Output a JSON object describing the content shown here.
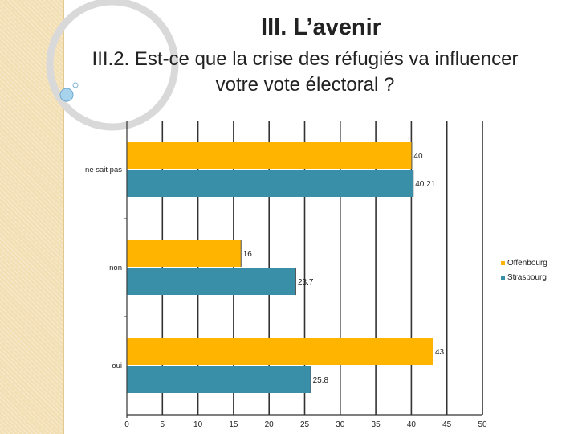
{
  "slide": {
    "title": "III. L’avenir",
    "subtitle_line1": "III.2. Est-ce que la crise des réfugiés va influencer",
    "subtitle_line2": "votre vote électoral ?"
  },
  "chart_data": {
    "type": "bar",
    "orientation": "horizontal",
    "categories": [
      "ne sait pas",
      "non",
      "oui"
    ],
    "series": [
      {
        "name": "Offenbourg",
        "values": [
          40,
          16,
          43
        ],
        "labels": [
          "40",
          "16",
          "43"
        ],
        "color": "#ffb400"
      },
      {
        "name": "Strasbourg",
        "values": [
          40.21,
          23.7,
          25.8
        ],
        "labels": [
          "40.21",
          "23.7",
          "25.8"
        ],
        "color": "#3a8fa8"
      }
    ],
    "xlim": [
      0,
      50
    ],
    "xticks": [
      0,
      5,
      10,
      15,
      20,
      25,
      30,
      35,
      40,
      45,
      50
    ],
    "grid": true,
    "legend": "right"
  },
  "colors": {
    "sidebar": "#f3dfb4",
    "grid": "#333333"
  }
}
